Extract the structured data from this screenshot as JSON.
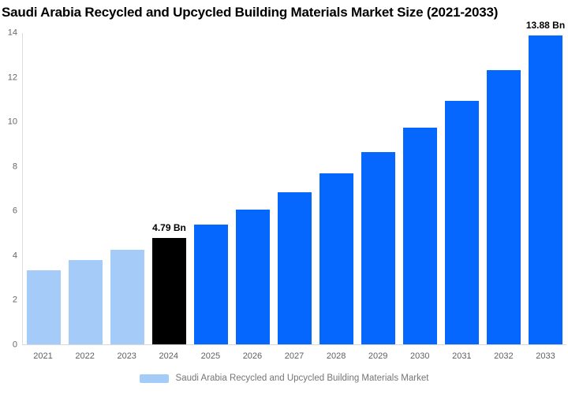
{
  "chart_data": {
    "type": "bar",
    "title": "Saudi Arabia Recycled and Upcycled Building Materials Market Size (2021-2033)",
    "categories": [
      "2021",
      "2022",
      "2023",
      "2024",
      "2025",
      "2026",
      "2027",
      "2028",
      "2029",
      "2030",
      "2031",
      "2032",
      "2033"
    ],
    "values": [
      3.32,
      3.78,
      4.24,
      4.79,
      5.39,
      6.07,
      6.83,
      7.68,
      8.65,
      9.73,
      10.95,
      12.33,
      13.88
    ],
    "bar_segments": [
      "historical",
      "historical",
      "historical",
      "highlight",
      "forecast",
      "forecast",
      "forecast",
      "forecast",
      "forecast",
      "forecast",
      "forecast",
      "forecast",
      "forecast"
    ],
    "annotations": [
      {
        "category": "2024",
        "text": "4.79 Bn"
      },
      {
        "category": "2033",
        "text": "13.88 Bn"
      }
    ],
    "unit": "Bn",
    "xlabel": "",
    "ylabel": "",
    "ylim": [
      0,
      14
    ],
    "ytick_step": 2,
    "yticks": [
      0,
      2,
      4,
      6,
      8,
      10,
      12,
      14
    ],
    "grid": false,
    "legend_position": "bottom",
    "legend": {
      "label": "Saudi Arabia Recycled and Upcycled Building Materials Market",
      "swatch_color_key": "historical"
    }
  },
  "palette": {
    "historical": "#A5CCF9",
    "highlight": "#000000",
    "forecast": "#0667FE",
    "axis_line": "#d9d9d9",
    "tick_text": "#666666",
    "legend_text": "#757575",
    "title_text": "#000000"
  }
}
